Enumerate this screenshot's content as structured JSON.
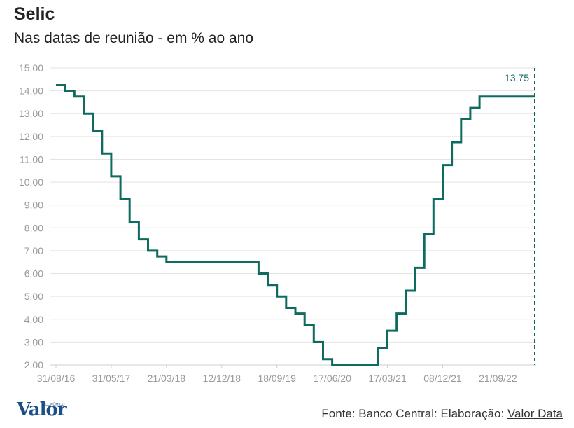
{
  "header": {
    "title": "Selic",
    "subtitle": "Nas datas de reunião - em % ao ano"
  },
  "footer": {
    "source_text": "Fonte: Banco Central: Elaboração: ",
    "source_link": "Valor Data",
    "logo_text": "Valor",
    "logo_small": "ECONÔMICO"
  },
  "colors": {
    "line": "#0f6b60",
    "grid": "#e3e3e3",
    "tick": "#9a9a9a",
    "logo": "#1c4f8a"
  },
  "chart_data": {
    "type": "line",
    "step": true,
    "title": "Selic",
    "subtitle": "Nas datas de reunião - em % ao ano",
    "xlabel": "",
    "ylabel": "",
    "ylim": [
      2,
      15
    ],
    "yticks": [
      "2,00",
      "3,00",
      "4,00",
      "5,00",
      "6,00",
      "7,00",
      "8,00",
      "9,00",
      "10,00",
      "11,00",
      "12,00",
      "13,00",
      "14,00",
      "15,00"
    ],
    "xticks": [
      "31/08/16",
      "31/05/17",
      "21/03/18",
      "12/12/18",
      "18/09/19",
      "17/06/20",
      "17/03/21",
      "08/12/21",
      "21/09/22"
    ],
    "series": [
      {
        "values": [
          14.25,
          14.0,
          13.75,
          13.0,
          12.25,
          11.25,
          10.25,
          9.25,
          8.25,
          7.5,
          7.0,
          6.75,
          6.5,
          6.5,
          6.5,
          6.5,
          6.5,
          6.5,
          6.5,
          6.5,
          6.5,
          6.5,
          6.0,
          5.5,
          5.0,
          4.5,
          4.25,
          3.75,
          3.0,
          2.25,
          2.0,
          2.0,
          2.0,
          2.0,
          2.0,
          2.75,
          3.5,
          4.25,
          5.25,
          6.25,
          7.75,
          9.25,
          10.75,
          11.75,
          12.75,
          13.25,
          13.75,
          13.75,
          13.75,
          13.75,
          13.75,
          13.75,
          13.75
        ]
      }
    ],
    "annotation": {
      "label": "13,75",
      "value": 13.75,
      "marker": "dashed-vertical-at-end"
    },
    "grid": true,
    "legend": "none"
  }
}
